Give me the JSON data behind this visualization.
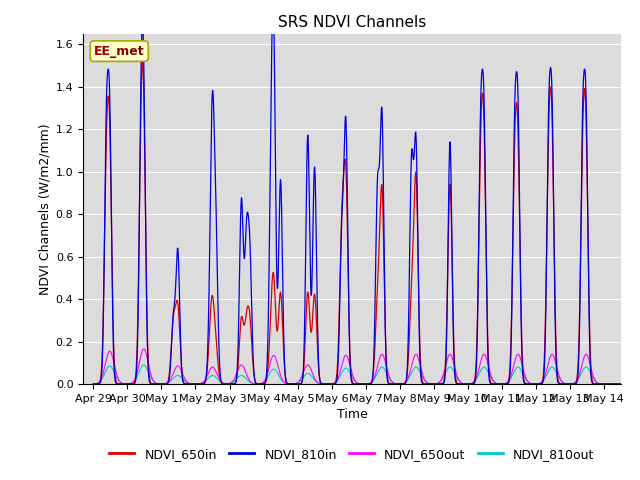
{
  "title": "SRS NDVI Channels",
  "xlabel": "Time",
  "ylabel": "NDVI Channels (W/m2/mm)",
  "xlim_start": -0.3,
  "xlim_end": 15.5,
  "ylim": [
    0,
    1.65
  ],
  "yticks": [
    0.0,
    0.2,
    0.4,
    0.6,
    0.8,
    1.0,
    1.2,
    1.4,
    1.6
  ],
  "xtick_labels": [
    "Apr 29",
    "Apr 30",
    "May 1",
    "May 2",
    "May 3",
    "May 4",
    "May 5",
    "May 6",
    "May 7",
    "May 8",
    "May 9",
    "May 10",
    "May 11",
    "May 12",
    "May 13",
    "May 14"
  ],
  "xtick_positions": [
    0,
    1,
    2,
    3,
    4,
    5,
    6,
    7,
    8,
    9,
    10,
    11,
    12,
    13,
    14,
    15
  ],
  "color_650in": "#dd0000",
  "color_810in": "#0000dd",
  "color_650out": "#ff00ff",
  "color_810out": "#00cccc",
  "legend_label_650in": "NDVI_650in",
  "legend_label_810in": "NDVI_810in",
  "legend_label_650out": "NDVI_650out",
  "legend_label_810out": "NDVI_810out",
  "annotation_text": "EE_met",
  "background_color": "#dcdcdc",
  "title_fontsize": 11,
  "axis_label_fontsize": 9,
  "tick_fontsize": 8,
  "legend_fontsize": 9
}
